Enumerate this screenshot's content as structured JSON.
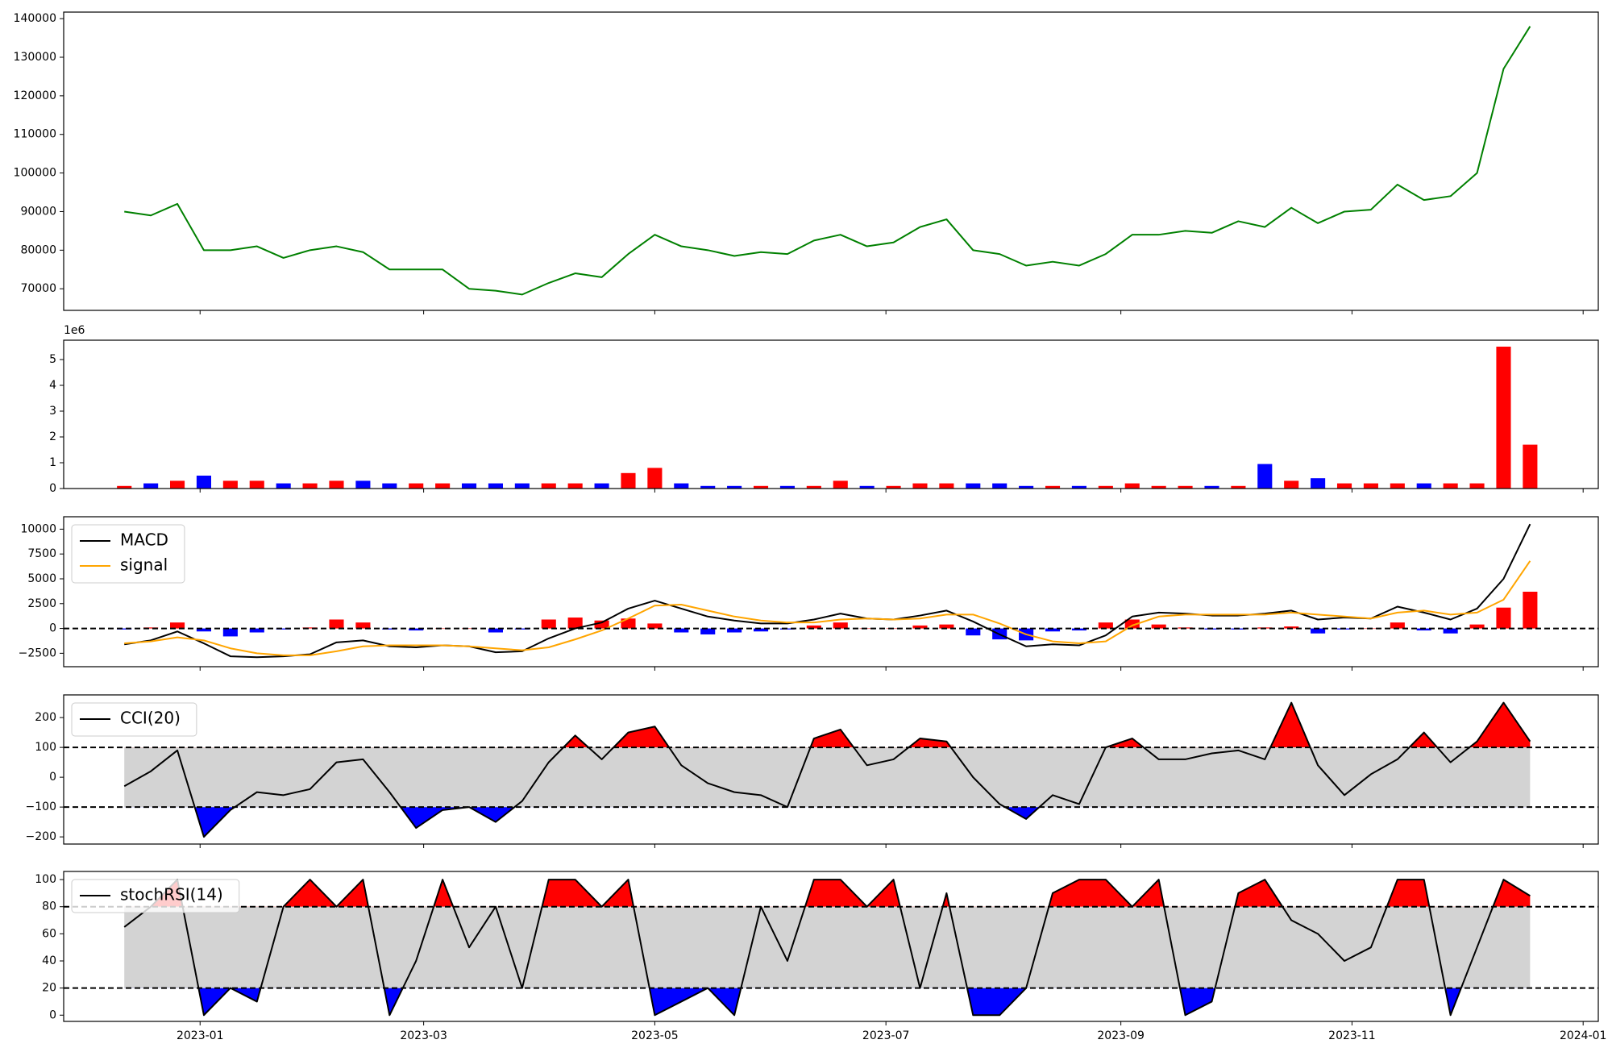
{
  "chart_data": [
    {
      "type": "line",
      "x": [
        "2022-12-12",
        "2022-12-19",
        "2022-12-26",
        "2023-01-02",
        "2023-01-09",
        "2023-01-16",
        "2023-01-23",
        "2023-01-30",
        "2023-02-06",
        "2023-02-13",
        "2023-02-20",
        "2023-02-27",
        "2023-03-06",
        "2023-03-13",
        "2023-03-20",
        "2023-03-27",
        "2023-04-03",
        "2023-04-10",
        "2023-04-17",
        "2023-04-24",
        "2023-05-01",
        "2023-05-08",
        "2023-05-15",
        "2023-05-22",
        "2023-05-29",
        "2023-06-05",
        "2023-06-12",
        "2023-06-19",
        "2023-06-26",
        "2023-07-03",
        "2023-07-10",
        "2023-07-17",
        "2023-07-24",
        "2023-07-31",
        "2023-08-07",
        "2023-08-14",
        "2023-08-21",
        "2023-08-28",
        "2023-09-04",
        "2023-09-11",
        "2023-09-18",
        "2023-09-25",
        "2023-10-02",
        "2023-10-09",
        "2023-10-16",
        "2023-10-23",
        "2023-10-30",
        "2023-11-06",
        "2023-11-13",
        "2023-11-20",
        "2023-11-27",
        "2023-12-04",
        "2023-12-11",
        "2023-12-18"
      ],
      "series": [
        {
          "type": "line",
          "color": "#008000",
          "values": [
            90000,
            89000,
            92000,
            80000,
            80000,
            81000,
            78000,
            80000,
            81000,
            79500,
            75000,
            75000,
            75000,
            70000,
            69500,
            68500,
            71500,
            74000,
            73000,
            79000,
            84000,
            81000,
            80000,
            78500,
            79500,
            79000,
            82500,
            84000,
            81000,
            82000,
            86000,
            88000,
            80000,
            79000,
            76000,
            77000,
            76000,
            79000,
            84000,
            84000,
            85000,
            84500,
            87500,
            86000,
            91000,
            87000,
            90000,
            90500,
            97000,
            93000,
            94000,
            100000,
            127000,
            138000
          ]
        }
      ],
      "ylim": [
        64400,
        141700
      ],
      "yticks": [
        70000,
        80000,
        90000,
        100000,
        110000,
        120000,
        130000,
        140000
      ]
    },
    {
      "type": "bar",
      "offset_label": "1e6",
      "series": [
        {
          "type": "bar",
          "values": [
            0.1,
            0.2,
            0.3,
            0.5,
            0.3,
            0.3,
            0.2,
            0.2,
            0.3,
            0.3,
            0.2,
            0.2,
            0.2,
            0.2,
            0.2,
            0.2,
            0.2,
            0.2,
            0.2,
            0.6,
            0.8,
            0.2,
            0.1,
            0.1,
            0.1,
            0.1,
            0.1,
            0.3,
            0.1,
            0.1,
            0.2,
            0.2,
            0.2,
            0.2,
            0.1,
            0.1,
            0.1,
            0.1,
            0.2,
            0.1,
            0.1,
            0.1,
            0.1,
            0.95,
            0.3,
            0.4,
            0.2,
            0.2,
            0.2,
            0.2,
            0.2,
            0.2,
            5.5,
            1.7
          ],
          "colors": [
            "red",
            "blue",
            "red",
            "blue",
            "red",
            "red",
            "blue",
            "red",
            "red",
            "blue",
            "blue",
            "red",
            "red",
            "blue",
            "blue",
            "blue",
            "red",
            "red",
            "blue",
            "red",
            "red",
            "blue",
            "blue",
            "blue",
            "red",
            "blue",
            "red",
            "red",
            "blue",
            "red",
            "red",
            "red",
            "blue",
            "blue",
            "blue",
            "red",
            "blue",
            "red",
            "red",
            "red",
            "red",
            "blue",
            "red",
            "blue",
            "red",
            "blue",
            "red",
            "red",
            "red",
            "blue",
            "red",
            "red",
            "red",
            "red"
          ]
        }
      ],
      "ylim": [
        0,
        5.75
      ],
      "yticks": [
        0,
        1,
        2,
        3,
        4,
        5
      ]
    },
    {
      "type": "line",
      "series": [
        {
          "type": "bar",
          "pos_color": "red",
          "neg_color": "blue",
          "values": [
            -100,
            100,
            600,
            -300,
            -800,
            -400,
            -100,
            100,
            900,
            600,
            -100,
            -200,
            0,
            0,
            -400,
            -100,
            900,
            1100,
            800,
            1000,
            500,
            -400,
            -600,
            -400,
            -300,
            -100,
            300,
            600,
            0,
            0,
            300,
            400,
            -700,
            -1100,
            -1200,
            -300,
            -200,
            600,
            900,
            400,
            100,
            -100,
            -100,
            100,
            200,
            -500,
            -100,
            0,
            600,
            -200,
            -500,
            400,
            2100,
            3700
          ]
        },
        {
          "type": "line",
          "name": "MACD",
          "color": "#000000",
          "values": [
            -1600,
            -1200,
            -300,
            -1500,
            -2800,
            -2900,
            -2800,
            -2600,
            -1400,
            -1200,
            -1800,
            -1900,
            -1700,
            -1800,
            -2400,
            -2300,
            -1000,
            0,
            600,
            2000,
            2800,
            2000,
            1200,
            800,
            500,
            500,
            900,
            1500,
            1000,
            900,
            1300,
            1800,
            700,
            -600,
            -1800,
            -1600,
            -1700,
            -700,
            1200,
            1600,
            1500,
            1300,
            1300,
            1500,
            1800,
            900,
            1100,
            1000,
            2200,
            1600,
            900,
            2000,
            5000,
            10500
          ]
        },
        {
          "type": "line",
          "name": "signal",
          "color": "orange",
          "values": [
            -1500,
            -1300,
            -900,
            -1200,
            -2000,
            -2500,
            -2700,
            -2700,
            -2300,
            -1800,
            -1700,
            -1700,
            -1700,
            -1800,
            -2000,
            -2200,
            -1900,
            -1100,
            -200,
            1000,
            2300,
            2400,
            1800,
            1200,
            800,
            600,
            600,
            900,
            1000,
            900,
            1000,
            1400,
            1400,
            500,
            -600,
            -1300,
            -1500,
            -1300,
            300,
            1200,
            1400,
            1400,
            1400,
            1400,
            1600,
            1400,
            1200,
            1000,
            1600,
            1800,
            1400,
            1600,
            2900,
            6800
          ]
        }
      ],
      "hlines": [
        0
      ],
      "legend": "upper left",
      "ylim": [
        -3850,
        11250
      ],
      "yticks": [
        {
          "value": -2500,
          "label": "−2500"
        },
        0,
        2500,
        5000,
        7500,
        10000
      ]
    },
    {
      "type": "line",
      "series": [
        {
          "type": "line",
          "name": "CCI(20)",
          "color": "#000000",
          "values": [
            -30,
            20,
            90,
            -200,
            -110,
            -50,
            -60,
            -40,
            50,
            60,
            -50,
            -170,
            -110,
            -100,
            -150,
            -80,
            50,
            140,
            60,
            150,
            170,
            40,
            -20,
            -50,
            -60,
            -100,
            130,
            160,
            40,
            60,
            130,
            120,
            0,
            -90,
            -140,
            -60,
            -90,
            100,
            130,
            60,
            60,
            80,
            90,
            60,
            250,
            40,
            -60,
            10,
            60,
            150,
            50,
            120,
            250,
            120
          ]
        }
      ],
      "bands": [
        -100,
        100
      ],
      "band_color": "#d3d3d3",
      "above_color": "red",
      "below_color": "blue",
      "legend": "upper left",
      "ylim": [
        -224,
        276
      ],
      "yticks": [
        {
          "value": -200,
          "label": "−200"
        },
        {
          "value": -100,
          "label": "−100"
        },
        0,
        100,
        200
      ]
    },
    {
      "type": "line",
      "series": [
        {
          "type": "line",
          "name": "stochRSI(14)",
          "color": "#000000",
          "values": [
            65,
            80,
            100,
            0,
            20,
            10,
            80,
            100,
            80,
            100,
            0,
            40,
            100,
            50,
            80,
            20,
            100,
            100,
            80,
            100,
            0,
            10,
            20,
            0,
            80,
            40,
            100,
            100,
            80,
            100,
            20,
            90,
            0,
            0,
            20,
            90,
            100,
            100,
            80,
            100,
            0,
            10,
            90,
            100,
            70,
            60,
            40,
            50,
            100,
            100,
            0,
            50,
            100,
            88
          ]
        }
      ],
      "bands": [
        20,
        80
      ],
      "band_color": "#d3d3d3",
      "above_color": "red",
      "below_color": "blue",
      "legend": "upper left",
      "ylim": [
        -4.6,
        106
      ],
      "yticks": [
        0,
        20,
        40,
        60,
        80,
        100
      ],
      "xlim": [
        "2022-11-26",
        "2024-01-05"
      ],
      "xticks": [
        "2023-01",
        "2023-03",
        "2023-05",
        "2023-07",
        "2023-09",
        "2023-11",
        "2024-01"
      ]
    }
  ]
}
